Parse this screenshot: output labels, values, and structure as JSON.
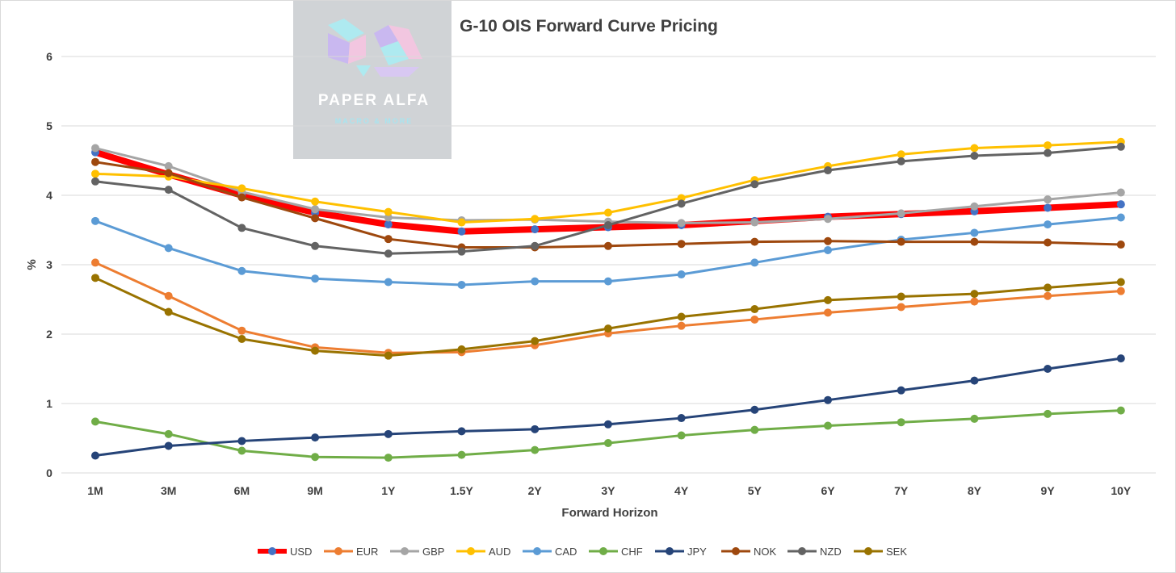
{
  "chart_data": {
    "type": "line",
    "title": "G-10 OIS Forward Curve Pricing",
    "xlabel": "Forward Horizon",
    "ylabel": "%",
    "ylim": [
      0,
      6
    ],
    "yticks": [
      "0",
      "1",
      "2",
      "3",
      "4",
      "5",
      "6"
    ],
    "grid": true,
    "legend_position": "bottom",
    "categories": [
      "1M",
      "3M",
      "6M",
      "9M",
      "1Y",
      "1.5Y",
      "2Y",
      "3Y",
      "4Y",
      "5Y",
      "6Y",
      "7Y",
      "8Y",
      "9Y",
      "10Y"
    ],
    "series": [
      {
        "name": "USD",
        "color": "#ff0000",
        "marker_color": "#4472c4",
        "values": [
          4.62,
          4.3,
          4.0,
          3.75,
          3.58,
          3.48,
          3.51,
          3.54,
          3.57,
          3.63,
          3.69,
          3.73,
          3.77,
          3.82,
          3.87
        ]
      },
      {
        "name": "EUR",
        "color": "#ed7d31",
        "values": [
          3.03,
          2.55,
          2.05,
          1.81,
          1.73,
          1.74,
          1.84,
          2.01,
          2.12,
          2.21,
          2.31,
          2.39,
          2.47,
          2.55,
          2.62
        ]
      },
      {
        "name": "GBP",
        "color": "#a5a5a5",
        "values": [
          4.68,
          4.42,
          4.05,
          3.8,
          3.68,
          3.64,
          3.65,
          3.62,
          3.6,
          3.61,
          3.66,
          3.74,
          3.84,
          3.94,
          4.04
        ]
      },
      {
        "name": "AUD",
        "color": "#ffc000",
        "values": [
          4.31,
          4.27,
          4.1,
          3.91,
          3.76,
          3.61,
          3.66,
          3.75,
          3.96,
          4.22,
          4.42,
          4.59,
          4.68,
          4.72,
          4.77
        ]
      },
      {
        "name": "CAD",
        "color": "#5b9bd5",
        "values": [
          3.63,
          3.24,
          2.91,
          2.8,
          2.75,
          2.71,
          2.76,
          2.76,
          2.86,
          3.03,
          3.21,
          3.36,
          3.46,
          3.58,
          3.68
        ]
      },
      {
        "name": "CHF",
        "color": "#70ad47",
        "values": [
          0.74,
          0.56,
          0.32,
          0.23,
          0.22,
          0.26,
          0.33,
          0.43,
          0.54,
          0.62,
          0.68,
          0.73,
          0.78,
          0.85,
          0.9
        ]
      },
      {
        "name": "JPY",
        "color": "#264478",
        "values": [
          0.25,
          0.39,
          0.46,
          0.51,
          0.56,
          0.6,
          0.63,
          0.7,
          0.79,
          0.91,
          1.05,
          1.19,
          1.33,
          1.5,
          1.65
        ]
      },
      {
        "name": "NOK",
        "color": "#9e480e",
        "values": [
          4.48,
          4.32,
          3.97,
          3.67,
          3.37,
          3.25,
          3.25,
          3.27,
          3.3,
          3.33,
          3.34,
          3.33,
          3.33,
          3.32,
          3.29
        ]
      },
      {
        "name": "NZD",
        "color": "#636363",
        "values": [
          4.2,
          4.08,
          3.53,
          3.27,
          3.16,
          3.19,
          3.27,
          3.57,
          3.88,
          4.16,
          4.36,
          4.49,
          4.57,
          4.61,
          4.7
        ]
      },
      {
        "name": "SEK",
        "color": "#997300",
        "values": [
          2.81,
          2.32,
          1.93,
          1.76,
          1.69,
          1.78,
          1.9,
          2.08,
          2.25,
          2.36,
          2.49,
          2.54,
          2.58,
          2.67,
          2.75
        ]
      }
    ]
  },
  "watermark": {
    "name": "PAPER ALFA",
    "tagline": "MACRO & MORE"
  }
}
